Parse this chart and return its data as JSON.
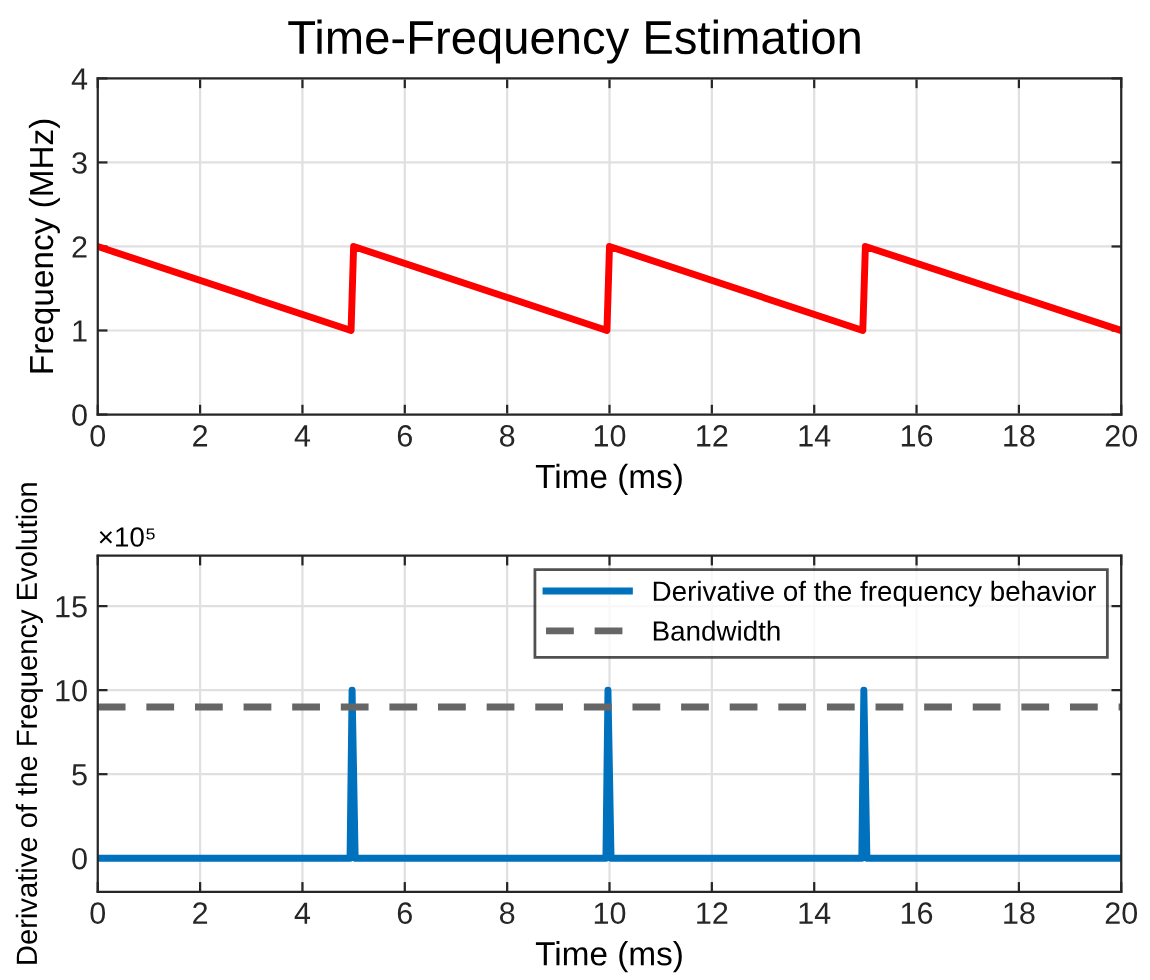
{
  "chart_data": [
    {
      "type": "line",
      "title": "Time-Frequency Estimation",
      "xlabel": "Time (ms)",
      "ylabel": "Frequency (MHz)",
      "series": [
        {
          "color": "#ff0000",
          "x": [
            0,
            4.95,
            5,
            9.95,
            10,
            14.95,
            15,
            20
          ],
          "values": [
            2,
            1,
            2,
            1,
            2,
            1,
            2,
            1
          ]
        }
      ],
      "xlim": [
        0,
        20
      ],
      "xticks": [
        0,
        2,
        4,
        6,
        8,
        10,
        12,
        14,
        16,
        18,
        20
      ],
      "ylim": [
        0,
        4
      ],
      "yticks": [
        0,
        1,
        2,
        3,
        4
      ],
      "grid": true,
      "legend": false
    },
    {
      "type": "line",
      "xlabel": "Time (ms)",
      "ylabel": "Derivative of the Frequency Evolution",
      "annotations": [
        "×10⁵"
      ],
      "series": [
        {
          "name": "Derivative of the frequency behavior",
          "color": "#0072bd",
          "x": [
            0,
            4.93,
            4.97,
            5.03,
            9.93,
            9.97,
            10.03,
            14.93,
            14.97,
            15.03,
            20
          ],
          "values": [
            0,
            0,
            10,
            0,
            0,
            10,
            0,
            0,
            10,
            0,
            0
          ]
        }
      ],
      "ref_lines": [
        {
          "axis": "y",
          "value": 9,
          "label": "Bandwidth",
          "color": "#666666",
          "line_style": "dashed"
        }
      ],
      "xlim": [
        0,
        20
      ],
      "xticks": [
        0,
        2,
        4,
        6,
        8,
        10,
        12,
        14,
        16,
        18,
        20
      ],
      "ylim": [
        -2,
        18
      ],
      "yticks": [
        0,
        5,
        10,
        15
      ],
      "grid": true,
      "legend": "top right"
    }
  ]
}
